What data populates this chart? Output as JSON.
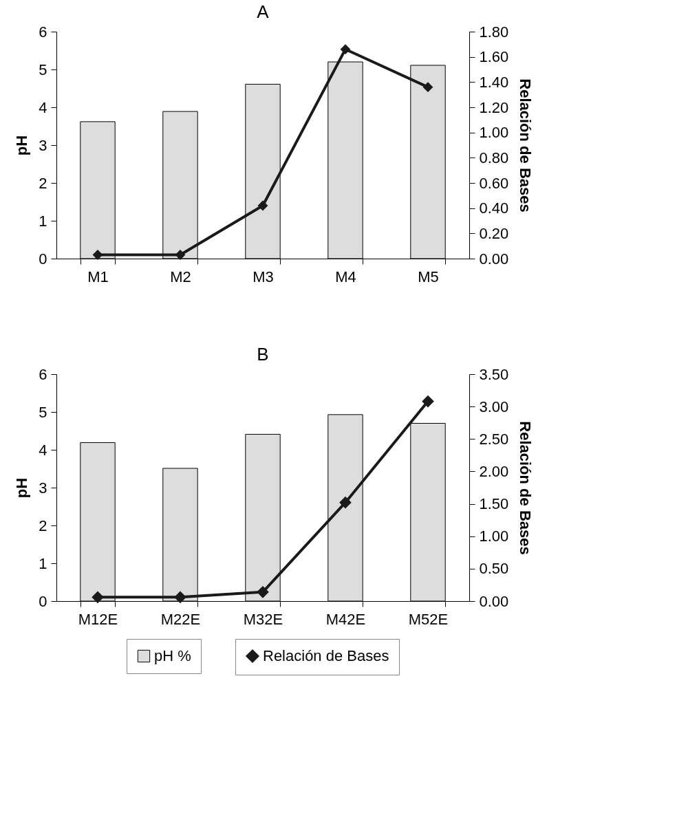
{
  "chart_data": [
    {
      "type": "bar",
      "title": "A",
      "categories": [
        "M1",
        "M2",
        "M3",
        "M4",
        "M5"
      ],
      "ylabel": "pH",
      "y2label": "Relación de Bases",
      "ylim": [
        0,
        6
      ],
      "yticks": [
        0,
        1,
        2,
        3,
        4,
        5,
        6
      ],
      "y2lim": [
        0,
        1.8
      ],
      "y2ticks": [
        {
          "value": 0,
          "label": "0.00"
        },
        {
          "value": 0.2,
          "label": "0.20"
        },
        {
          "value": 0.4,
          "label": "0.40"
        },
        {
          "value": 0.6,
          "label": "0.60"
        },
        {
          "value": 0.8,
          "label": "0.80"
        },
        {
          "value": 1,
          "label": "1.00"
        },
        {
          "value": 1.2,
          "label": "1.20"
        },
        {
          "value": 1.4,
          "label": "1.40"
        },
        {
          "value": 1.6,
          "label": "1.60"
        },
        {
          "value": 1.8,
          "label": "1.80"
        }
      ],
      "grid": false,
      "legend": false,
      "marker": "diamond",
      "line_style": "solid",
      "series": [
        {
          "color": "#dddddd",
          "values": [
            3.62,
            3.89,
            4.61,
            5.2,
            5.11
          ]
        },
        {
          "type": "line",
          "axis": "y2",
          "color": "#1a1a1a",
          "values": [
            0.03,
            0.03,
            0.42,
            1.66,
            1.36
          ]
        }
      ]
    },
    {
      "type": "bar",
      "title": "B",
      "categories": [
        "M12E",
        "M22E",
        "M32E",
        "M42E",
        "M52E"
      ],
      "ylabel": "pH",
      "y2label": "Relación de Bases",
      "ylim": [
        0,
        6
      ],
      "yticks": [
        0,
        1,
        2,
        3,
        4,
        5,
        6
      ],
      "y2lim": [
        0,
        3.5
      ],
      "y2ticks": [
        {
          "value": 0,
          "label": "0.00"
        },
        {
          "value": 0.5,
          "label": "0.50"
        },
        {
          "value": 1,
          "label": "1.00"
        },
        {
          "value": 1.5,
          "label": "1.50"
        },
        {
          "value": 2,
          "label": "2.00"
        },
        {
          "value": 2.5,
          "label": "2.50"
        },
        {
          "value": 3,
          "label": "3.00"
        },
        {
          "value": 3.5,
          "label": "3.50"
        }
      ],
      "grid": false,
      "legend": "bottom",
      "marker": "diamond",
      "line_style": "solid",
      "series": [
        {
          "name": "pH %",
          "color": "#dddddd",
          "values": [
            4.19,
            3.51,
            4.41,
            4.93,
            4.7
          ]
        },
        {
          "type": "line",
          "axis": "y2",
          "name": "Relación de Bases",
          "color": "#1a1a1a",
          "values": [
            0.06,
            0.06,
            0.14,
            1.52,
            3.08
          ]
        }
      ]
    }
  ]
}
